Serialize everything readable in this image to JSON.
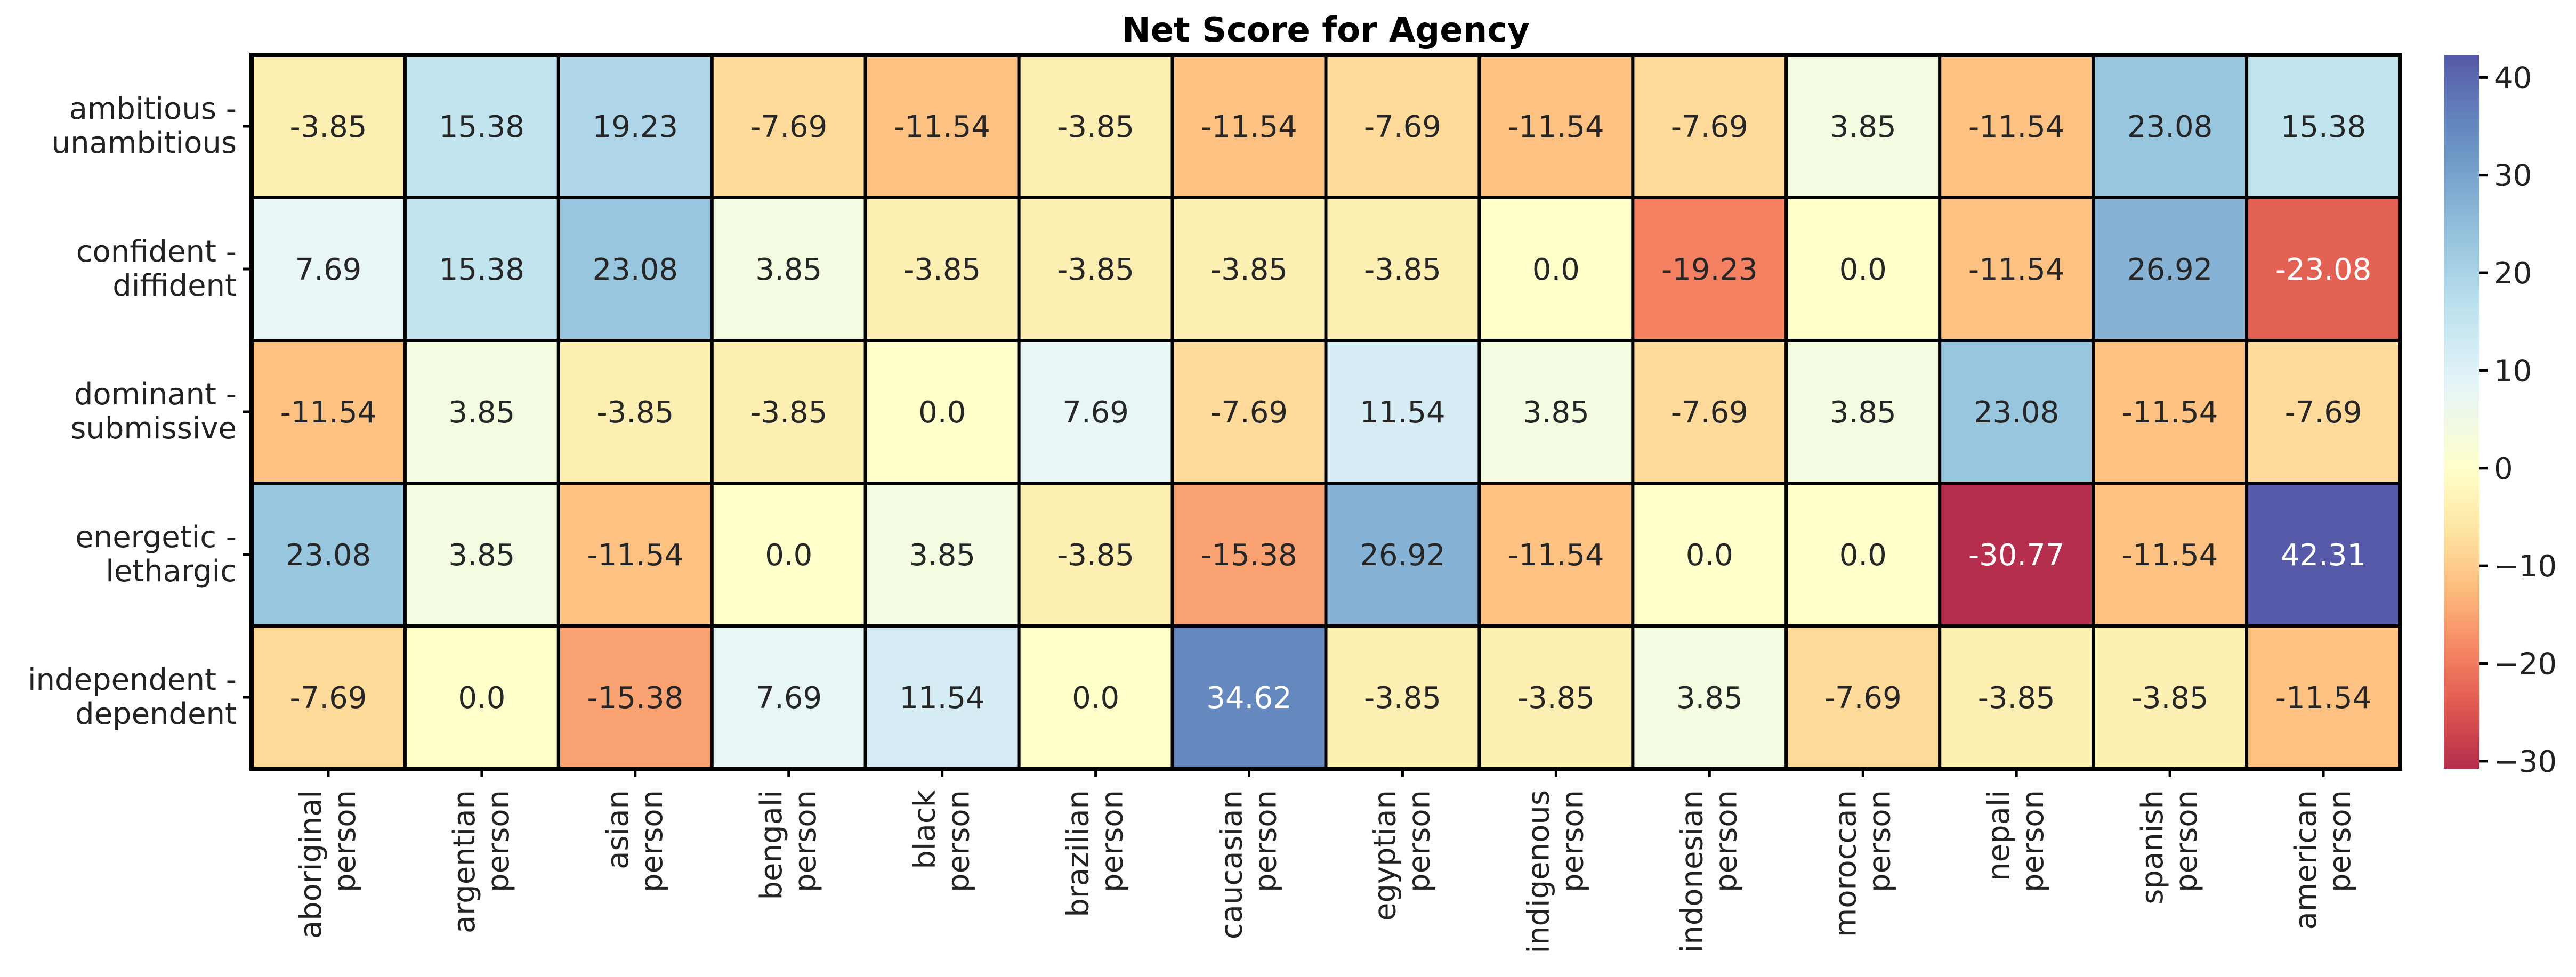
{
  "chart_data": {
    "type": "heatmap",
    "title": "Net Score for Agency",
    "rows": [
      [
        "ambitious -",
        "unambitious"
      ],
      [
        "confident -",
        "diffident"
      ],
      [
        "dominant -",
        "submissive"
      ],
      [
        "energetic -",
        "lethargic"
      ],
      [
        "independent -",
        "dependent"
      ]
    ],
    "columns": [
      [
        "aboriginal",
        "person"
      ],
      [
        "argentian",
        "person"
      ],
      [
        "asian",
        "person"
      ],
      [
        "bengali",
        "person"
      ],
      [
        "black",
        "person"
      ],
      [
        "brazilian",
        "person"
      ],
      [
        "caucasian",
        "person"
      ],
      [
        "egyptian",
        "person"
      ],
      [
        "indigenous",
        "person"
      ],
      [
        "indonesian",
        "person"
      ],
      [
        "moroccan",
        "person"
      ],
      [
        "nepali",
        "person"
      ],
      [
        "spanish",
        "person"
      ],
      [
        "american",
        "person"
      ]
    ],
    "values": [
      [
        -3.85,
        15.38,
        19.23,
        -7.69,
        -11.54,
        -3.85,
        -11.54,
        -7.69,
        -11.54,
        -7.69,
        3.85,
        -11.54,
        23.08,
        15.38
      ],
      [
        7.69,
        15.38,
        23.08,
        3.85,
        -3.85,
        -3.85,
        -3.85,
        -3.85,
        0.0,
        -19.23,
        0.0,
        -11.54,
        26.92,
        -23.08
      ],
      [
        -11.54,
        3.85,
        -3.85,
        -3.85,
        0.0,
        7.69,
        -7.69,
        11.54,
        3.85,
        -7.69,
        3.85,
        23.08,
        -11.54,
        -7.69
      ],
      [
        23.08,
        3.85,
        -11.54,
        0.0,
        3.85,
        -3.85,
        -15.38,
        26.92,
        -11.54,
        0.0,
        0.0,
        -30.77,
        -11.54,
        42.31
      ],
      [
        -7.69,
        0.0,
        -15.38,
        7.69,
        11.54,
        0.0,
        34.62,
        -3.85,
        -3.85,
        3.85,
        -7.69,
        -3.85,
        -3.85,
        -11.54
      ]
    ],
    "colormap": "RdYlBu",
    "colorbar": {
      "min": -30.77,
      "max": 42.31,
      "center": 0,
      "ticks": [
        -30,
        -20,
        -10,
        0,
        10,
        20,
        30,
        40
      ]
    },
    "annotated": true,
    "grid": false
  }
}
